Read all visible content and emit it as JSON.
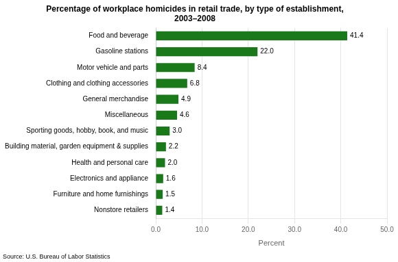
{
  "chart_data": {
    "type": "bar",
    "orientation": "horizontal",
    "title": "Percentage of workplace homicides in retail trade, by type of establishment,\n2003–2008",
    "categories": [
      "Nonstore retailers",
      "Furniture and home furnishings",
      "Electronics and appliance",
      "Health and personal care",
      "Building material, garden equipment & supplies",
      "Sporting goods, hobby, book, and music",
      "Miscellaneous",
      "General merchandise",
      "Clothing and clothing accessories",
      "Motor vehicle and parts",
      "Gasoline stations",
      "Food and beverage"
    ],
    "values": [
      1.4,
      1.5,
      1.6,
      2.0,
      2.2,
      3.0,
      4.6,
      4.9,
      6.8,
      8.4,
      22.0,
      41.4
    ],
    "value_labels": [
      "1.4",
      "1.5",
      "1.6",
      "2.0",
      "2.2",
      "3.0",
      "4.6",
      "4.9",
      "6.8",
      "8.4",
      "22.0",
      "41.4"
    ],
    "data_labels": true,
    "color": "#1a7a1a",
    "xlabel": "Percent",
    "xlim": [
      0,
      50
    ],
    "xticks": [
      {
        "value": 0,
        "label": "0.0"
      },
      {
        "value": 10,
        "label": "10.0"
      },
      {
        "value": 20,
        "label": "20.0"
      },
      {
        "value": 30,
        "label": "30.0"
      },
      {
        "value": 40,
        "label": "40.0"
      },
      {
        "value": 50,
        "label": "50.0"
      }
    ],
    "grid": true,
    "source": "Source: U.S. Bureau of Labor Statistics"
  }
}
